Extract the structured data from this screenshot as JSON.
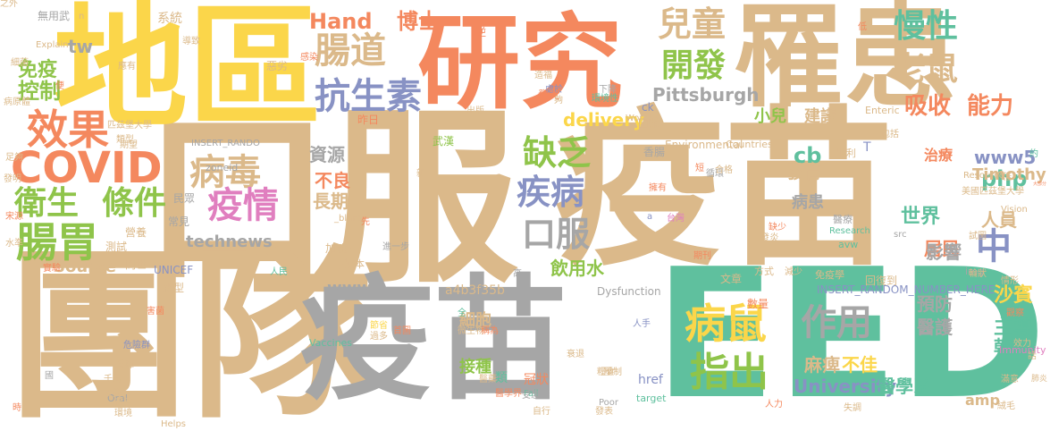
{
  "palette": {
    "tan": "#dbb98a",
    "yellow": "#fbd64a",
    "orange": "#f4885e",
    "teal": "#5fc09e",
    "gray": "#a6a6a6",
    "slate": "#8892c4",
    "green": "#8fc44a",
    "pink": "#e07fbf"
  },
  "words": [
    {
      "text": "口服",
      "color": "tan"
    },
    {
      "text": "疫苗",
      "color": "tan"
    },
    {
      "text": "團隊",
      "color": "tan"
    },
    {
      "text": "地區",
      "color": "yellow"
    },
    {
      "text": "研究",
      "color": "orange"
    },
    {
      "text": "罹患",
      "color": "tan"
    },
    {
      "text": "EED",
      "color": "teal"
    },
    {
      "text": "疫苗",
      "color": "gray"
    },
    {
      "text": "病毒",
      "color": "tan"
    },
    {
      "text": "疫情",
      "color": "pink"
    },
    {
      "text": "腸道",
      "color": "tan"
    },
    {
      "text": "抗生素",
      "color": "slate"
    },
    {
      "text": "兒童",
      "color": "tan"
    },
    {
      "text": "開發",
      "color": "green"
    },
    {
      "text": "慢性",
      "color": "teal"
    },
    {
      "text": "老鼠",
      "color": "tan"
    },
    {
      "text": "COVID",
      "color": "orange"
    },
    {
      "text": "衛生",
      "color": "green"
    },
    {
      "text": "條件",
      "color": "green"
    },
    {
      "text": "腸胃",
      "color": "green"
    },
    {
      "text": "效果",
      "color": "orange"
    },
    {
      "text": "缺乏",
      "color": "green"
    },
    {
      "text": "疾病",
      "color": "slate"
    },
    {
      "text": "口服",
      "color": "gray"
    },
    {
      "text": "病鼠",
      "color": "yellow"
    },
    {
      "text": "指出",
      "color": "green"
    },
    {
      "text": "作用",
      "color": "gray"
    },
    {
      "text": "中",
      "color": "slate"
    },
    {
      "text": "吸收",
      "color": "orange"
    },
    {
      "text": "能力",
      "color": "orange"
    },
    {
      "text": "Hand",
      "color": "orange"
    },
    {
      "text": "博士",
      "color": "orange"
    },
    {
      "text": "控制",
      "color": "green"
    },
    {
      "text": "免疫",
      "color": "green"
    },
    {
      "text": "tw",
      "color": "gray"
    },
    {
      "text": "資源",
      "color": "gray"
    },
    {
      "text": "不良",
      "color": "orange"
    },
    {
      "text": "長期",
      "color": "tan"
    },
    {
      "text": "technews",
      "color": "gray"
    },
    {
      "text": "delivery",
      "color": "yellow"
    },
    {
      "text": "Pittsburgh",
      "color": "gray"
    },
    {
      "text": "小兒",
      "color": "green"
    },
    {
      "text": "建議",
      "color": "tan"
    },
    {
      "text": "cb",
      "color": "teal"
    },
    {
      "text": "發育",
      "color": "tan"
    },
    {
      "text": "php",
      "color": "teal"
    },
    {
      "text": "世界",
      "color": "teal"
    },
    {
      "text": "病患",
      "color": "gray"
    },
    {
      "text": "www5",
      "color": "slate"
    },
    {
      "text": "治療",
      "color": "orange"
    },
    {
      "text": "Timothy",
      "color": "tan"
    },
    {
      "text": "人員",
      "color": "tan"
    },
    {
      "text": "居民",
      "color": "orange"
    },
    {
      "text": "影響",
      "color": "gray"
    },
    {
      "text": "預防",
      "color": "gray"
    },
    {
      "text": "醫護",
      "color": "gray"
    },
    {
      "text": "麻痺",
      "color": "tan"
    },
    {
      "text": "不佳",
      "color": "yellow"
    },
    {
      "text": "University",
      "color": "slate"
    },
    {
      "text": "醫學系",
      "color": "teal"
    },
    {
      "text": "沙賓",
      "color": "yellow"
    },
    {
      "text": "主導",
      "color": "teal"
    },
    {
      "text": "乾淨",
      "color": "teal"
    },
    {
      "text": "飲用水",
      "color": "green"
    },
    {
      "text": "Source",
      "color": "tan"
    },
    {
      "text": "www",
      "color": "gray"
    },
    {
      "text": "細胞",
      "color": "tan"
    },
    {
      "text": "接種",
      "color": "green"
    },
    {
      "text": "冠狀",
      "color": "orange"
    },
    {
      "text": "a4b3f35b",
      "color": "tan"
    },
    {
      "text": "amp",
      "color": "tan"
    },
    {
      "text": "href",
      "color": "slate"
    },
    {
      "text": "UNICEF",
      "color": "slate"
    },
    {
      "text": "新型",
      "color": "tan"
    },
    {
      "text": "營養",
      "color": "tan"
    },
    {
      "text": "系統",
      "color": "tan"
    },
    {
      "text": "無用武",
      "color": "gray"
    },
    {
      "text": "武漢",
      "color": "green"
    },
    {
      "text": "發炎",
      "color": "tan"
    },
    {
      "text": "肺炎",
      "color": "tan"
    },
    {
      "text": "醫療",
      "color": "gray"
    },
    {
      "text": "台灣",
      "color": "pink"
    },
    {
      "text": "Research",
      "color": "teal"
    },
    {
      "text": "Environmental",
      "color": "tan"
    },
    {
      "text": "Enteric",
      "color": "tan"
    },
    {
      "text": "Countries",
      "color": "tan"
    },
    {
      "text": "zoneid",
      "color": "gray"
    },
    {
      "text": "INSERT_RANDO",
      "color": "gray"
    },
    {
      "text": "INSERT_RANDOM_NUMBER_HERE",
      "color": "slate"
    },
    {
      "text": "Dysfunction",
      "color": "gray"
    },
    {
      "text": "Vaccines",
      "color": "teal"
    },
    {
      "text": "Immunity",
      "color": "pink"
    },
    {
      "text": "Oral",
      "color": "gray"
    },
    {
      "text": "Helps",
      "color": "tan"
    },
    {
      "text": "Poor",
      "color": "gray"
    },
    {
      "text": "Fail",
      "color": "teal"
    },
    {
      "text": "target",
      "color": "teal"
    },
    {
      "text": "Vision",
      "color": "tan"
    },
    {
      "text": "Resource",
      "color": "tan"
    },
    {
      "text": "World",
      "color": "tan"
    },
    {
      "text": "Explain",
      "color": "tan"
    },
    {
      "text": "avw",
      "color": "teal"
    },
    {
      "text": "src",
      "color": "gray"
    },
    {
      "text": "img",
      "color": "gray"
    },
    {
      "text": "_blank",
      "color": "tan"
    },
    {
      "text": "ck",
      "color": "slate"
    },
    {
      "text": "T",
      "color": "slate"
    },
    {
      "text": "a",
      "color": "slate"
    },
    {
      "text": "n",
      "color": "tan"
    },
    {
      "text": "美國匹茲堡大學",
      "color": "tan"
    },
    {
      "text": "匹茲堡大學",
      "color": "tan"
    },
    {
      "text": "發明",
      "color": "tan"
    },
    {
      "text": "細菌",
      "color": "tan"
    },
    {
      "text": "應有",
      "color": "tan"
    },
    {
      "text": "類型",
      "color": "tan"
    },
    {
      "text": "病原體",
      "color": "tan"
    },
    {
      "text": "期望",
      "color": "tan"
    },
    {
      "text": "昨日",
      "color": "orange"
    },
    {
      "text": "常見",
      "color": "gray"
    },
    {
      "text": "民眾",
      "color": "gray"
    },
    {
      "text": "測試",
      "color": "tan"
    },
    {
      "text": "問世",
      "color": "tan"
    },
    {
      "text": "加速",
      "color": "tan"
    },
    {
      "text": "原本",
      "color": "tan"
    },
    {
      "text": "人民",
      "color": "teal"
    },
    {
      "text": "節省",
      "color": "yellow"
    },
    {
      "text": "首圖",
      "color": "orange"
    },
    {
      "text": "危險群",
      "color": "slate"
    },
    {
      "text": "千萬",
      "color": "tan"
    },
    {
      "text": "接受",
      "color": "tan"
    },
    {
      "text": "有害",
      "color": "tan"
    },
    {
      "text": "環境",
      "color": "tan"
    },
    {
      "text": "發揮",
      "color": "tan"
    },
    {
      "text": "害菌",
      "color": "orange"
    },
    {
      "text": "過多",
      "color": "tan"
    },
    {
      "text": "微生物",
      "color": "tan"
    },
    {
      "text": "稱為",
      "color": "orange"
    },
    {
      "text": "醫藥",
      "color": "tan"
    },
    {
      "text": "類",
      "color": "teal"
    },
    {
      "text": "醫學界",
      "color": "orange"
    },
    {
      "text": "受惠",
      "color": "gray"
    },
    {
      "text": "衰退",
      "color": "tan"
    },
    {
      "text": "糧食",
      "color": "tan"
    },
    {
      "text": "壓制",
      "color": "tan"
    },
    {
      "text": "自行",
      "color": "tan"
    },
    {
      "text": "發表",
      "color": "tan"
    },
    {
      "text": "人力",
      "color": "orange"
    },
    {
      "text": "失調",
      "color": "tan"
    },
    {
      "text": "絨毛",
      "color": "tan"
    },
    {
      "text": "人手",
      "color": "slate"
    },
    {
      "text": "文章",
      "color": "tan"
    },
    {
      "text": "期刊",
      "color": "orange"
    },
    {
      "text": "方式",
      "color": "tan"
    },
    {
      "text": "數量",
      "color": "orange"
    },
    {
      "text": "免疫學",
      "color": "tan"
    },
    {
      "text": "回復到",
      "color": "tan"
    },
    {
      "text": "減少",
      "color": "tan"
    },
    {
      "text": "缺少",
      "color": "orange"
    },
    {
      "text": "試圖",
      "color": "tan"
    },
    {
      "text": "輪狀",
      "color": "tan"
    },
    {
      "text": "觀察",
      "color": "orange"
    },
    {
      "text": "情形",
      "color": "tan"
    },
    {
      "text": "效力",
      "color": "tan"
    },
    {
      "text": "話",
      "color": "tan"
    },
    {
      "text": "大部分",
      "color": "orange"
    },
    {
      "text": "包括",
      "color": "tan"
    },
    {
      "text": "約",
      "color": "teal"
    },
    {
      "text": "倍",
      "color": "tan"
    },
    {
      "text": "順利",
      "color": "tan"
    },
    {
      "text": "擁有",
      "color": "orange"
    },
    {
      "text": "循環",
      "color": "gray"
    },
    {
      "text": "短",
      "color": "orange"
    },
    {
      "text": "合格",
      "color": "tan"
    },
    {
      "text": "困難",
      "color": "tan"
    },
    {
      "text": "處於",
      "color": "slate"
    },
    {
      "text": "發炎",
      "color": "orange"
    },
    {
      "text": "造福",
      "color": "tan"
    },
    {
      "text": "環境性",
      "color": "teal"
    },
    {
      "text": "下降",
      "color": "gray"
    },
    {
      "text": "出版",
      "color": "tan"
    },
    {
      "text": "夠",
      "color": "tan"
    },
    {
      "text": "惡劣",
      "color": "tan"
    },
    {
      "text": "逆",
      "color": "orange"
    },
    {
      "text": "導致",
      "color": "tan"
    },
    {
      "text": "便",
      "color": "orange"
    },
    {
      "text": "低",
      "color": "orange"
    },
    {
      "text": "感染",
      "color": "orange"
    },
    {
      "text": "新",
      "color": "tan"
    },
    {
      "text": "全",
      "color": "teal"
    },
    {
      "text": "高",
      "color": "gray"
    },
    {
      "text": "先",
      "color": "orange"
    },
    {
      "text": "進一步",
      "color": "gray"
    },
    {
      "text": "香腸",
      "color": "gray"
    },
    {
      "text": "時",
      "color": "orange"
    },
    {
      "text": "國",
      "color": "gray"
    },
    {
      "text": "水準",
      "color": "tan"
    },
    {
      "text": "實驗",
      "color": "orange"
    },
    {
      "text": "足夠",
      "color": "tan"
    },
    {
      "text": "宋源",
      "color": "orange"
    },
    {
      "text": "滿意",
      "color": "tan"
    },
    {
      "text": "之外",
      "color": "tan"
    }
  ]
}
